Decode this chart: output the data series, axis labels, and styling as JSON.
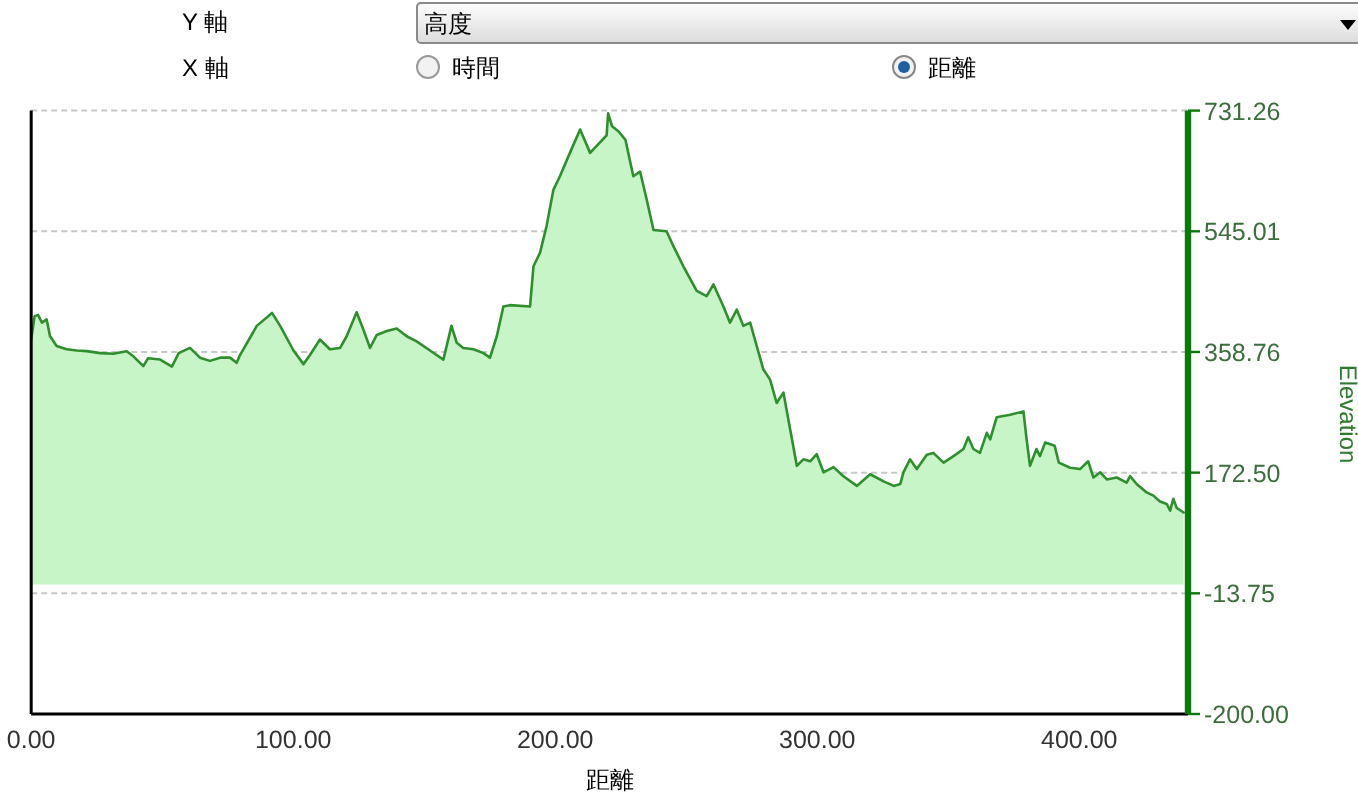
{
  "chart_data": {
    "type": "area",
    "xlabel": "距離",
    "ylabel": "Elevation",
    "color": "#2f8f2f",
    "grid": "y",
    "annotations": [
      "Y 軸",
      "高度",
      "X 軸",
      "時間",
      "距離"
    ],
    "xlim": [
      0,
      441.5
    ],
    "xticks": [
      {
        "value": 0,
        "label": "0.00"
      },
      {
        "value": 100,
        "label": "100.00"
      },
      {
        "value": 200,
        "label": "200.00"
      },
      {
        "value": 300,
        "label": "300.00"
      },
      {
        "value": 400,
        "label": "400.00"
      }
    ],
    "ylim": [
      -200,
      731.26
    ],
    "yticks": [
      {
        "value": -200,
        "label": "-200.00"
      },
      {
        "value": -13.75,
        "label": "-13.75"
      },
      {
        "value": 172.5,
        "label": "172.50"
      },
      {
        "value": 358.76,
        "label": "358.76"
      },
      {
        "value": 545.01,
        "label": "545.01"
      },
      {
        "value": 731.26,
        "label": "731.26"
      }
    ],
    "x": [
      0,
      1.3,
      2.6,
      4.1,
      5.9,
      7.2,
      9.7,
      13.5,
      17.4,
      21.2,
      26.3,
      31.3,
      36.4,
      39.0,
      41.5,
      42.8,
      44.6,
      49.2,
      53.7,
      56.3,
      60.6,
      64.4,
      68.2,
      72.1,
      75.9,
      78.4,
      79.7,
      86.1,
      91.9,
      95.0,
      100.1,
      103.9,
      106.4,
      110.2,
      114.0,
      117.9,
      120.4,
      124.2,
      126.8,
      129.3,
      131.9,
      135.7,
      139.5,
      143.3,
      147.1,
      152.2,
      157.3,
      160.4,
      162.4,
      164.9,
      168.8,
      172.6,
      175.1,
      177.7,
      180.2,
      182.7,
      190.4,
      191.7,
      194.2,
      196.7,
      199.3,
      201.8,
      205.6,
      209.5,
      213.3,
      219.6,
      220.2,
      221.7,
      224.2,
      226.8,
      229.8,
      232.4,
      234.9,
      237.5,
      242.5,
      245.1,
      248.9,
      254.0,
      257.8,
      260.4,
      264.2,
      266.7,
      269.3,
      271.8,
      274.4,
      276.9,
      279.4,
      282.0,
      284.5,
      287.1,
      292.2,
      294.7,
      297.3,
      299.8,
      302.4,
      306.2,
      310.0,
      315.1,
      320.2,
      325.3,
      329.2,
      331.7,
      332.9,
      335.4,
      338.0,
      341.8,
      344.3,
      348.2,
      352.0,
      355.8,
      357.6,
      359.6,
      362.1,
      364.7,
      366.0,
      368.5,
      373.6,
      378.7,
      379.9,
      381.2,
      383.7,
      385.0,
      387.0,
      390.6,
      392.2,
      396.5,
      400.3,
      403.4,
      405.4,
      408.0,
      410.5,
      414.3,
      418.1,
      419.4,
      421.9,
      425.7,
      428.3,
      430.8,
      433.4,
      434.7,
      435.9,
      437.2,
      439.8
    ],
    "values": [
      378,
      414,
      416,
      404,
      409,
      383,
      368,
      363,
      361,
      360,
      357,
      356,
      360,
      352,
      342,
      337,
      349,
      347,
      336,
      357,
      365,
      350,
      345,
      350,
      350,
      342,
      354,
      399,
      419,
      399,
      361,
      340,
      354,
      378,
      363,
      365,
      383,
      420,
      393,
      365,
      385,
      391,
      395,
      383,
      375,
      361,
      347,
      399,
      373,
      365,
      363,
      357,
      350,
      383,
      429,
      431,
      429,
      491,
      512,
      553,
      609,
      630,
      666,
      702,
      666,
      693,
      727,
      707,
      699,
      686,
      630,
      637,
      594,
      547,
      545,
      522,
      491,
      453,
      445,
      463,
      429,
      404,
      424,
      399,
      404,
      368,
      332,
      316,
      280,
      296,
      183,
      193,
      190,
      201,
      173,
      181,
      167,
      152,
      170,
      159,
      152,
      155,
      173,
      193,
      178,
      200,
      203,
      188,
      198,
      209,
      227,
      209,
      203,
      234,
      224,
      258,
      262,
      267,
      224,
      183,
      209,
      198,
      219,
      214,
      188,
      180,
      178,
      190,
      165,
      173,
      162,
      165,
      157,
      167,
      155,
      142,
      137,
      128,
      124,
      114,
      132,
      118,
      111
    ]
  }
}
